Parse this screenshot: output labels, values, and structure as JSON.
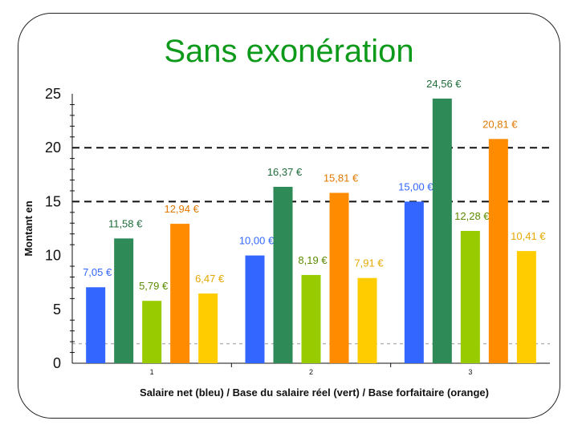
{
  "slide": {
    "title": "Sans exonération"
  },
  "chart_data": {
    "type": "bar",
    "categories": [
      "1",
      "2",
      "3"
    ],
    "series": [
      {
        "values": [
          7.05,
          10.0,
          15.0
        ],
        "labels": [
          "7,05 €",
          "10,00 €",
          "15,00 €"
        ],
        "color": "#3366ff"
      },
      {
        "values": [
          11.58,
          16.37,
          24.56
        ],
        "labels": [
          "11,58 €",
          "16,37 €",
          "24,56 €"
        ],
        "color": "#2e8b57"
      },
      {
        "values": [
          5.79,
          8.19,
          12.28
        ],
        "labels": [
          "5,79 €",
          "8,19 €",
          "12,28 €"
        ],
        "color": "#99cc00"
      },
      {
        "values": [
          12.94,
          15.81,
          20.81
        ],
        "labels": [
          "12,94 €",
          "15,81 €",
          "20,81 €"
        ],
        "color": "#ff8c00"
      },
      {
        "values": [
          6.47,
          7.91,
          10.41
        ],
        "labels": [
          "6,47 €",
          "7,91 €",
          "10,41 €"
        ],
        "color": "#ffcc00"
      }
    ],
    "label_colors": [
      "#3366ff",
      "#1e6b3a",
      "#5c8a00",
      "#e07800",
      "#e6a800"
    ],
    "xlabel": "Salaire net (bleu) / Base du salaire réel (vert) / Base forfaitaire (orange)",
    "ylabel": "Montant en",
    "ylim": [
      0,
      25
    ],
    "yticks": [
      "0",
      "5",
      "10",
      "15",
      "20",
      "25"
    ],
    "dashed_gridlines": [
      15,
      20
    ],
    "grid": false,
    "legend": "none"
  }
}
